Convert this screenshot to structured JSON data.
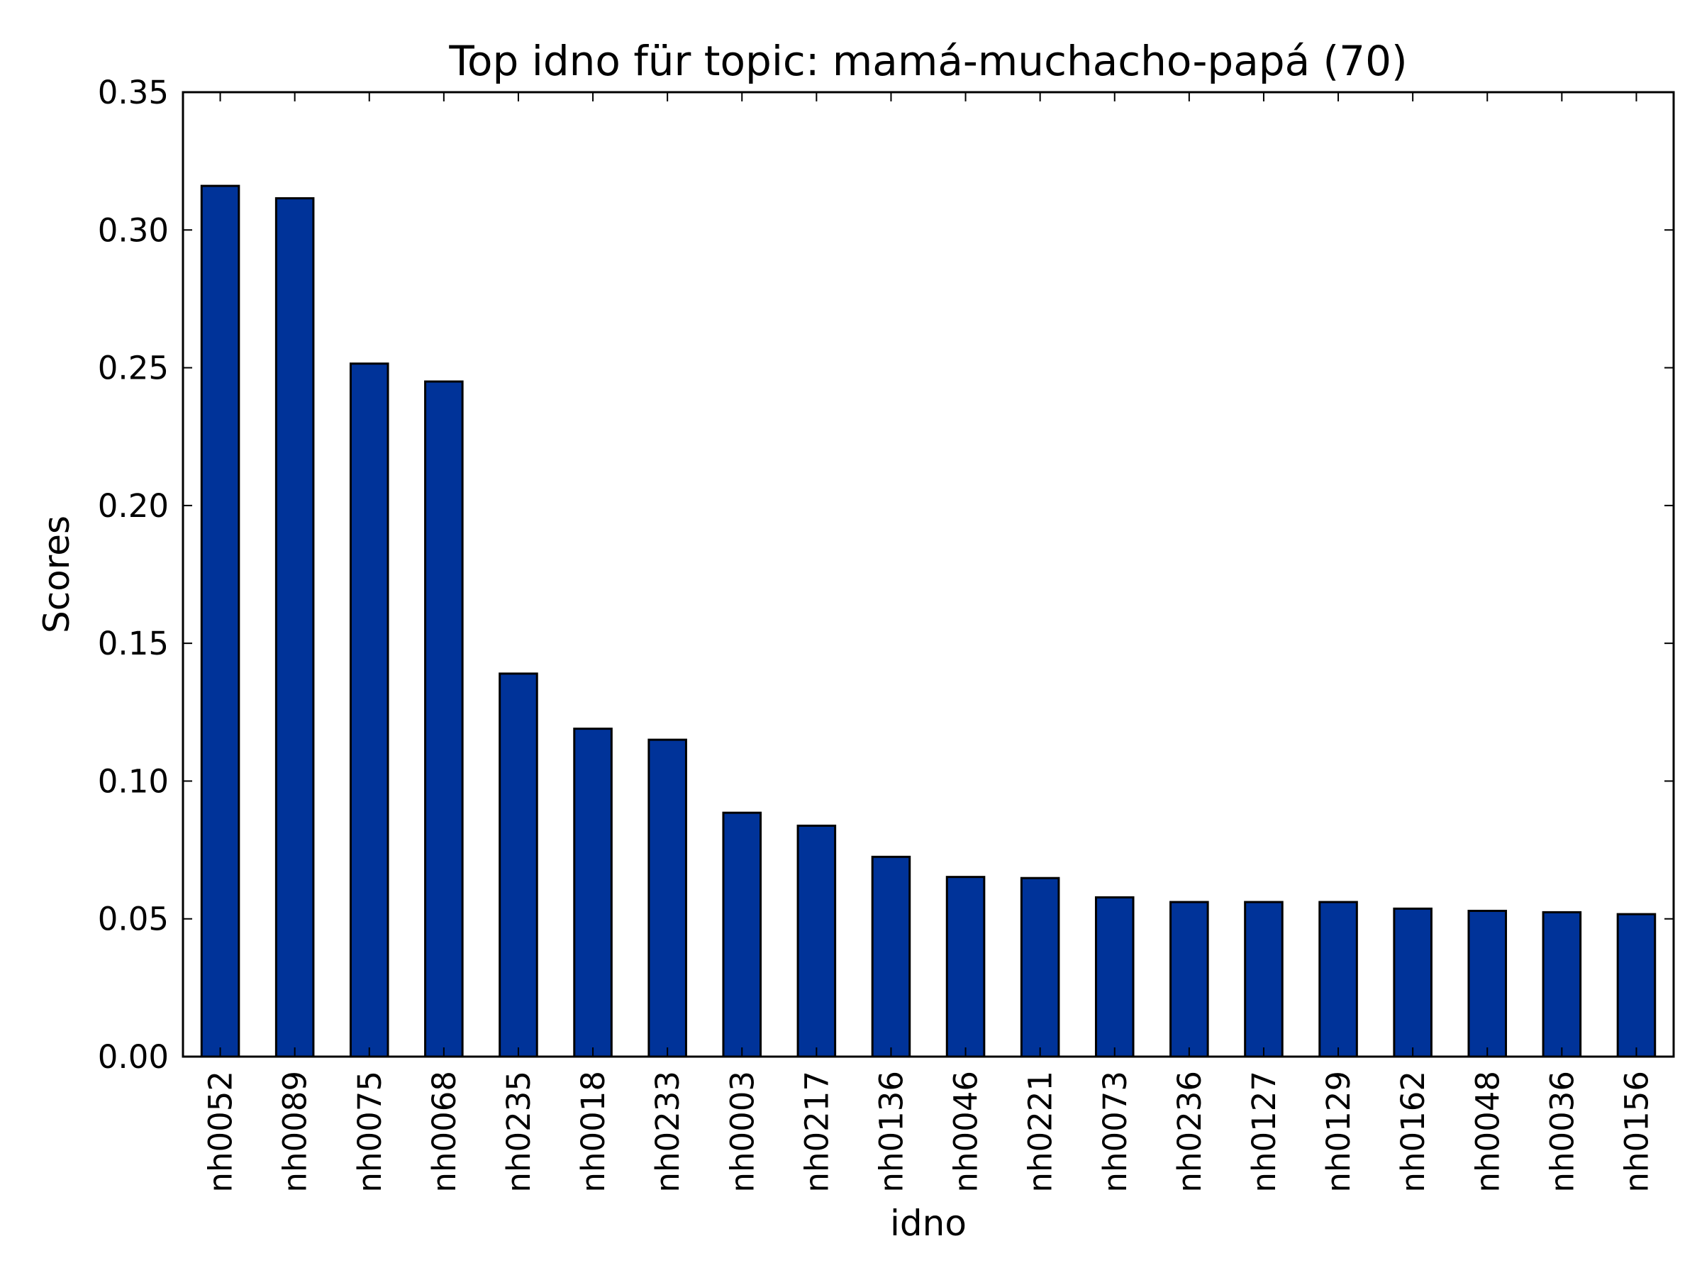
{
  "chart_data": {
    "type": "bar",
    "title": "Top idno für topic: mamá-muchacho-papá (70)",
    "xlabel": "idno",
    "ylabel": "Scores",
    "ylim": [
      0,
      0.35
    ],
    "yticks": [
      0.0,
      0.05,
      0.1,
      0.15,
      0.2,
      0.25,
      0.3,
      0.35
    ],
    "ytick_labels": [
      "0.00",
      "0.05",
      "0.10",
      "0.15",
      "0.20",
      "0.25",
      "0.30",
      "0.35"
    ],
    "categories": [
      "nh0052",
      "nh0089",
      "nh0075",
      "nh0068",
      "nh0235",
      "nh0018",
      "nh0233",
      "nh0003",
      "nh0217",
      "nh0136",
      "nh0046",
      "nh0221",
      "nh0073",
      "nh0236",
      "nh0127",
      "nh0129",
      "nh0162",
      "nh0048",
      "nh0036",
      "nh0156"
    ],
    "values": [
      0.316,
      0.3115,
      0.2515,
      0.245,
      0.139,
      0.119,
      0.115,
      0.0885,
      0.0838,
      0.0725,
      0.0652,
      0.0648,
      0.0578,
      0.0561,
      0.0561,
      0.0561,
      0.0537,
      0.0529,
      0.0524,
      0.0517
    ],
    "bar_color": "#003399",
    "edge_color": "#000000"
  }
}
